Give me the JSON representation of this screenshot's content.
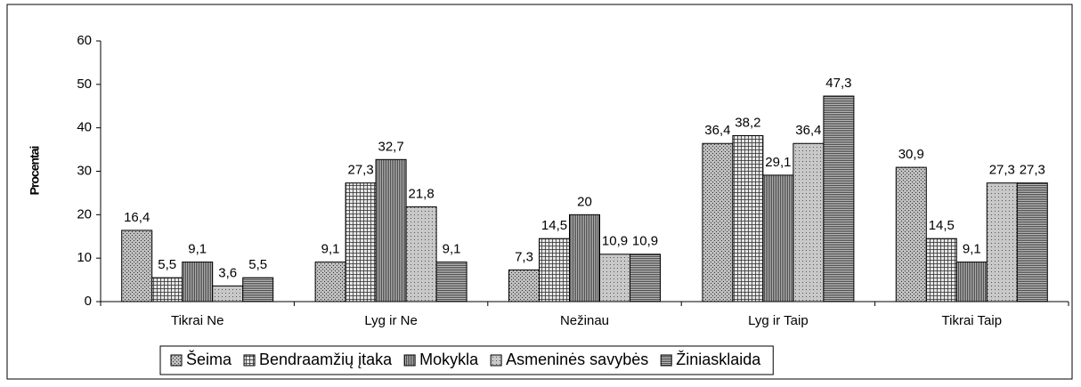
{
  "chart_data": {
    "type": "bar",
    "y_label": "Procentai",
    "categories": [
      "Tikrai Ne",
      "Lyg ir Ne",
      "Nežinau",
      "Lyg ir Taip",
      "Tikrai Taip"
    ],
    "series": [
      {
        "name": "Šeima",
        "color": "#bdbdbd",
        "values": [
          16.4,
          9.1,
          7.3,
          36.4,
          30.9
        ],
        "value_labels": [
          "16,4",
          "9,1",
          "7,3",
          "36,4",
          "30,9"
        ]
      },
      {
        "name": "Bendraamžių įtaka",
        "color": "#e6e6e6",
        "values": [
          5.5,
          27.3,
          14.5,
          38.2,
          14.5
        ],
        "value_labels": [
          "5,5",
          "27,3",
          "14,5",
          "38,2",
          "14,5"
        ]
      },
      {
        "name": "Mokykla",
        "color": "#b0b0b0",
        "values": [
          9.1,
          32.7,
          20,
          29.1,
          9.1
        ],
        "value_labels": [
          "9,1",
          "32,7",
          "20",
          "29,1",
          "9,1"
        ]
      },
      {
        "name": "Asmeninės savybės",
        "color": "#c8c8c8",
        "values": [
          3.6,
          21.8,
          10.9,
          36.4,
          27.3
        ],
        "value_labels": [
          "3,6",
          "21,8",
          "10,9",
          "36,4",
          "27,3"
        ]
      },
      {
        "name": "Žiniasklaida",
        "color": "#bababa",
        "values": [
          5.5,
          9.1,
          10.9,
          47.3,
          27.3
        ],
        "value_labels": [
          "5,5",
          "9,1",
          "10,9",
          "47,3",
          "27,3"
        ]
      }
    ],
    "ylim": [
      0,
      60
    ],
    "yticks": [
      0,
      10,
      20,
      30,
      40,
      50,
      60
    ],
    "grid": false,
    "legend": "bottom"
  }
}
